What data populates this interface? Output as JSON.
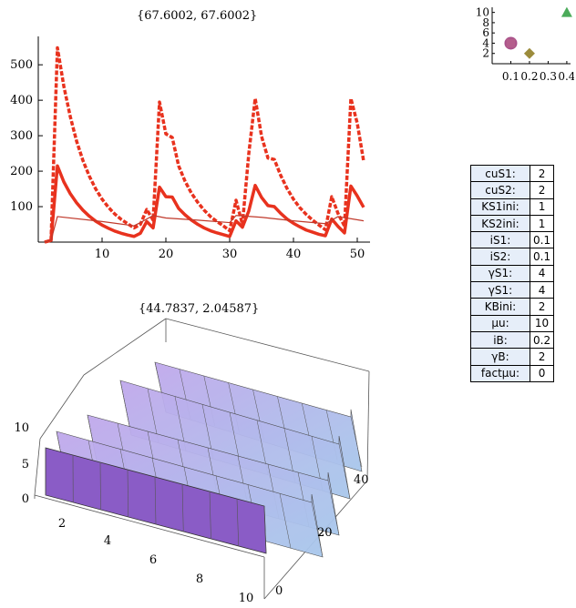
{
  "line_title": "{67.6002, 67.6002}",
  "surface_title": "{44.7837, 2.04587}",
  "chart_data": [
    {
      "type": "line",
      "title": "{67.6002, 67.6002}",
      "xlim": [
        0,
        52
      ],
      "ylim": [
        0,
        580
      ],
      "xticks": [
        10,
        20,
        30,
        40,
        50
      ],
      "yticks": [
        100,
        200,
        300,
        400,
        500
      ],
      "series": [
        {
          "style": "dashed",
          "color": "#e8321e",
          "x": [
            1,
            2,
            3,
            4,
            5,
            6,
            7,
            8,
            9,
            10,
            11,
            12,
            13,
            14,
            15,
            16,
            17,
            18,
            19,
            20,
            21,
            22,
            23,
            24,
            25,
            26,
            27,
            28,
            29,
            30,
            31,
            32,
            33,
            34,
            35,
            36,
            37,
            38,
            39,
            40,
            41,
            42,
            43,
            44,
            45,
            46,
            47,
            48,
            49,
            50,
            51
          ],
          "y": [
            0,
            5,
            548,
            440,
            355,
            285,
            230,
            186,
            150,
            121,
            98,
            79,
            64,
            52,
            40,
            50,
            92,
            62,
            395,
            305,
            295,
            215,
            172,
            138,
            112,
            90,
            72,
            58,
            46,
            32,
            118,
            50,
            250,
            405,
            298,
            237,
            233,
            188,
            151,
            121,
            97,
            78,
            62,
            48,
            35,
            128,
            80,
            45,
            405,
            335,
            228
          ]
        },
        {
          "style": "solid",
          "color": "#e8321e",
          "x": [
            1,
            2,
            3,
            4,
            5,
            6,
            7,
            8,
            9,
            10,
            11,
            12,
            13,
            14,
            15,
            16,
            17,
            18,
            19,
            20,
            21,
            22,
            23,
            24,
            25,
            26,
            27,
            28,
            29,
            30,
            31,
            32,
            33,
            34,
            35,
            36,
            37,
            38,
            39,
            40,
            41,
            42,
            43,
            44,
            45,
            46,
            47,
            48,
            49,
            50,
            51
          ],
          "y": [
            0,
            5,
            215,
            170,
            137,
            111,
            90,
            73,
            59,
            48,
            39,
            31,
            25,
            20,
            16,
            25,
            58,
            40,
            155,
            128,
            127,
            95,
            77,
            62,
            50,
            40,
            32,
            26,
            21,
            16,
            60,
            42,
            88,
            160,
            126,
            103,
            100,
            81,
            65,
            53,
            43,
            34,
            28,
            22,
            18,
            65,
            44,
            26,
            158,
            130,
            98
          ]
        },
        {
          "style": "solid-thin",
          "color": "#c0392b",
          "x": [
            1,
            2,
            3,
            10,
            15,
            16,
            18,
            20,
            25,
            30,
            31,
            35,
            40,
            45,
            47,
            51
          ],
          "y": [
            0,
            5,
            72,
            58,
            46,
            55,
            75,
            68,
            62,
            55,
            75,
            70,
            60,
            52,
            72,
            60
          ]
        }
      ]
    },
    {
      "type": "scatter",
      "xlim": [
        0,
        0.42
      ],
      "ylim": [
        0,
        11
      ],
      "xticks": [
        0.1,
        0.2,
        0.3,
        0.4
      ],
      "yticks": [
        2,
        4,
        6,
        8,
        10
      ],
      "points": [
        {
          "x": 0.1,
          "y": 4,
          "marker": "circle",
          "color": "#a8508a"
        },
        {
          "x": 0.1,
          "y": 4,
          "marker": "square",
          "color": "#b45e8c"
        },
        {
          "x": 0.2,
          "y": 2,
          "marker": "diamond",
          "color": "#9c8c3c"
        },
        {
          "x": 0.4,
          "y": 10,
          "marker": "triangle",
          "color": "#4bab5a"
        }
      ]
    },
    {
      "type": "surface",
      "title": "{44.7837, 2.04587}",
      "x_ticks": [
        2,
        4,
        6,
        8,
        10
      ],
      "y_ticks": [
        0,
        20,
        40
      ],
      "z_ticks": [
        0,
        5,
        10
      ],
      "colors": [
        "#8a5cc6",
        "#c0a8ec",
        "#a8c8ec"
      ]
    }
  ],
  "parameters": [
    {
      "label": "cuS1:",
      "value": "2"
    },
    {
      "label": "cuS2:",
      "value": "2"
    },
    {
      "label": "KS1ini:",
      "value": "1"
    },
    {
      "label": "KS2ini:",
      "value": "1"
    },
    {
      "label": "iS1:",
      "value": "0.1"
    },
    {
      "label": "iS2:",
      "value": "0.1"
    },
    {
      "label": "γS1:",
      "value": "4"
    },
    {
      "label": "γS1:",
      "value": "4"
    },
    {
      "label": "KBini:",
      "value": "2"
    },
    {
      "label": "μu:",
      "value": "10"
    },
    {
      "label": "iB:",
      "value": "0.2"
    },
    {
      "label": "γB:",
      "value": "2"
    },
    {
      "label": "factμu:",
      "value": "0"
    }
  ]
}
